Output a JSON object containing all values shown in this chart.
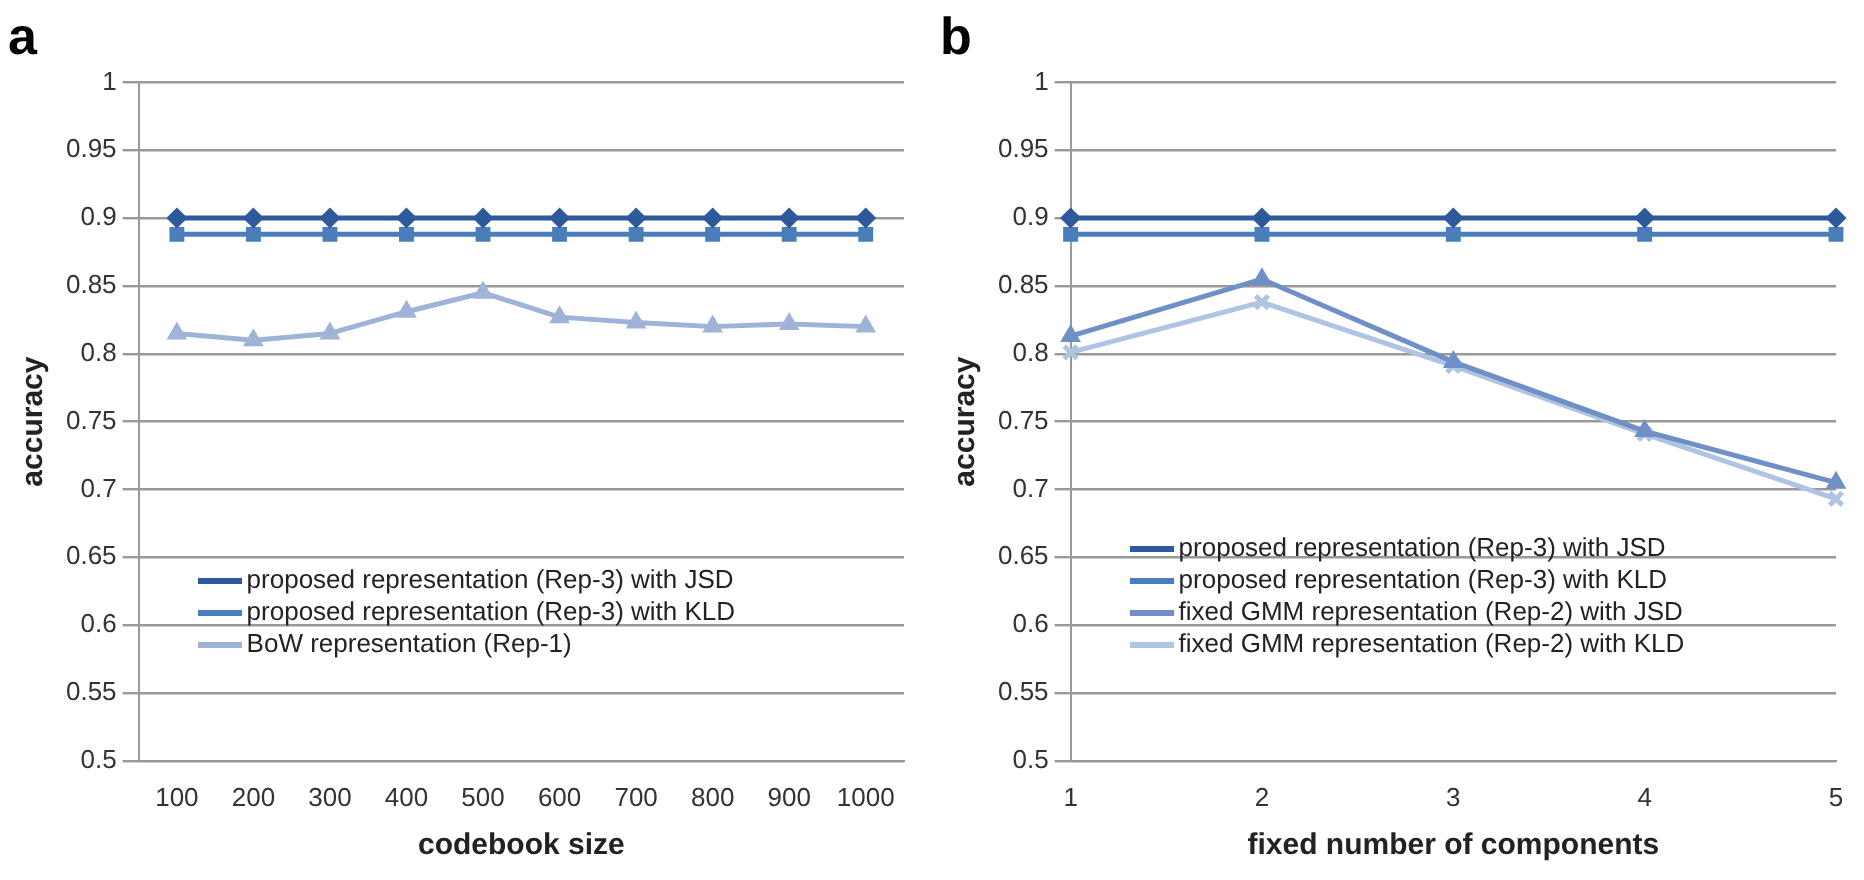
{
  "chart_data": [
    {
      "type": "line",
      "title": "a",
      "xlabel": "codebook size",
      "ylabel": "accuracy",
      "categories": [
        "100",
        "200",
        "300",
        "400",
        "500",
        "600",
        "700",
        "800",
        "900",
        "1000"
      ],
      "ylim": [
        0.5,
        1
      ],
      "yticks": [
        0.5,
        0.55,
        0.6,
        0.65,
        0.7,
        0.75,
        0.8,
        0.85,
        0.9,
        0.95,
        1
      ],
      "grid": "y",
      "legend": "bottom left",
      "series": [
        {
          "name": "proposed representation (Rep-3) with JSD",
          "color": "#2e5a9c",
          "marker": "diamond",
          "values": [
            0.9,
            0.9,
            0.9,
            0.9,
            0.9,
            0.9,
            0.9,
            0.9,
            0.9,
            0.9
          ]
        },
        {
          "name": "proposed representation (Rep-3) with KLD",
          "color": "#4a7ebb",
          "marker": "square",
          "values": [
            0.888,
            0.888,
            0.888,
            0.888,
            0.888,
            0.888,
            0.888,
            0.888,
            0.888,
            0.888
          ]
        },
        {
          "name": "BoW representation (Rep-1)",
          "color": "#9fb3d9",
          "marker": "triangle",
          "values": [
            0.815,
            0.81,
            0.815,
            0.831,
            0.845,
            0.827,
            0.823,
            0.82,
            0.822,
            0.82
          ]
        }
      ]
    },
    {
      "type": "line",
      "title": "b",
      "xlabel": "fixed number of components",
      "ylabel": "accuracy",
      "categories": [
        "1",
        "2",
        "3",
        "4",
        "5"
      ],
      "ylim": [
        0.5,
        1
      ],
      "yticks": [
        0.5,
        0.55,
        0.6,
        0.65,
        0.7,
        0.75,
        0.8,
        0.85,
        0.9,
        0.95,
        1
      ],
      "grid": "y",
      "legend": "bottom left",
      "series": [
        {
          "name": "proposed representation (Rep-3) with JSD",
          "color": "#2e5a9c",
          "marker": "diamond",
          "values": [
            0.9,
            0.9,
            0.9,
            0.9,
            0.9
          ]
        },
        {
          "name": "proposed representation (Rep-3) with KLD",
          "color": "#4a7ebb",
          "marker": "square",
          "values": [
            0.888,
            0.888,
            0.888,
            0.888,
            0.888
          ]
        },
        {
          "name": "fixed GMM representation (Rep-2) with JSD",
          "color": "#6f90c6",
          "marker": "triangle",
          "values": [
            0.813,
            0.855,
            0.794,
            0.743,
            0.705
          ]
        },
        {
          "name": "fixed GMM representation (Rep-2) with KLD",
          "color": "#afc3e3",
          "marker": "cross",
          "values": [
            0.801,
            0.838,
            0.791,
            0.741,
            0.693
          ]
        }
      ]
    }
  ]
}
